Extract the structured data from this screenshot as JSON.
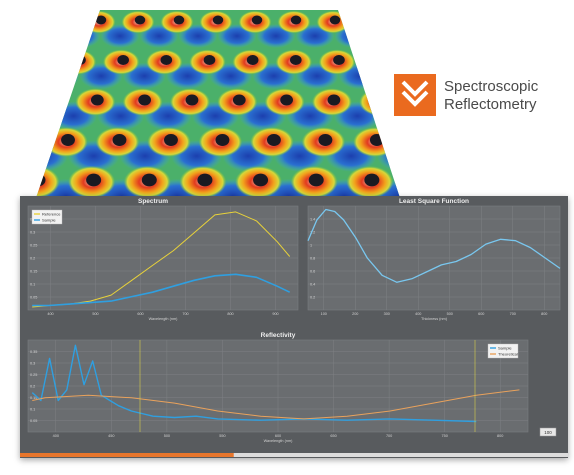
{
  "brand": {
    "line1": "Spectroscopic",
    "line2": "Reflectometry",
    "accent_color": "#ea6a1f",
    "icon": "double-chevron-down-icon"
  },
  "colors": {
    "panel_bg": "#585b5e",
    "plot_bg": "#6a6d70",
    "sample": "#2f9fe0",
    "reference": "#e8d23a",
    "theoretical": "#e9a25c",
    "least_square": "#79c7ef",
    "progress": "#e8762c"
  },
  "spectrum": {
    "title": "Spectrum",
    "xlabel": "Wavelength (nm)",
    "legend": [
      "Reference",
      "Sample"
    ],
    "yticks": [
      "0.35",
      "0.3",
      "0.25",
      "0.2",
      "0.15",
      "0.1",
      "0.05"
    ],
    "xticks": [
      "400",
      "500",
      "600",
      "700",
      "800",
      "900"
    ]
  },
  "lsf": {
    "title": "Least Square Function",
    "xlabel": "Thickness (nm)",
    "yticks": [
      "1.4",
      "1.2",
      "1",
      "0.8",
      "0.6",
      "0.4",
      "0.2"
    ],
    "xticks": [
      "100",
      "200",
      "300",
      "400",
      "500",
      "600",
      "700",
      "800"
    ]
  },
  "reflectivity": {
    "title": "Reflectivity",
    "xlabel": "Wavelength (nm)",
    "legend": [
      "Sample",
      "Theoretical"
    ],
    "yticks": [
      "0.35",
      "0.3",
      "0.25",
      "0.2",
      "0.15",
      "0.1",
      "0.05"
    ],
    "xticks": [
      "400",
      "450",
      "500",
      "550",
      "600",
      "650",
      "700",
      "750",
      "800"
    ],
    "zoom_label": "100"
  },
  "progress": {
    "value": 0.39
  },
  "chart_data": [
    {
      "type": "line",
      "title": "Spectrum",
      "xlabel": "Wavelength (nm)",
      "ylabel": "",
      "xlim": [
        350,
        1000
      ],
      "ylim": [
        0,
        0.35
      ],
      "grid": true,
      "legend_position": "top-left",
      "series": [
        {
          "name": "Reference",
          "x": [
            360,
            400,
            450,
            500,
            550,
            600,
            650,
            700,
            750,
            800,
            850,
            900,
            950,
            980
          ],
          "y": [
            0.01,
            0.015,
            0.02,
            0.03,
            0.05,
            0.1,
            0.15,
            0.2,
            0.26,
            0.32,
            0.33,
            0.3,
            0.23,
            0.18
          ]
        },
        {
          "name": "Sample",
          "x": [
            360,
            400,
            450,
            500,
            550,
            600,
            650,
            700,
            750,
            800,
            850,
            900,
            950,
            980
          ],
          "y": [
            0.015,
            0.015,
            0.02,
            0.025,
            0.03,
            0.045,
            0.06,
            0.08,
            0.1,
            0.115,
            0.12,
            0.11,
            0.08,
            0.06
          ]
        }
      ]
    },
    {
      "type": "line",
      "title": "Least Square Function",
      "xlabel": "Thickness (nm)",
      "ylabel": "",
      "xlim": [
        0,
        850
      ],
      "ylim": [
        0,
        1.5
      ],
      "grid": true,
      "series": [
        {
          "name": "",
          "x": [
            0,
            30,
            60,
            90,
            120,
            160,
            200,
            250,
            300,
            350,
            400,
            450,
            500,
            550,
            600,
            650,
            700,
            750,
            800,
            850
          ],
          "y": [
            1.0,
            1.3,
            1.45,
            1.42,
            1.3,
            1.05,
            0.75,
            0.5,
            0.4,
            0.45,
            0.55,
            0.65,
            0.7,
            0.8,
            0.95,
            1.02,
            1.0,
            0.9,
            0.75,
            0.6
          ]
        }
      ]
    },
    {
      "type": "line",
      "title": "Reflectivity",
      "xlabel": "Wavelength (nm)",
      "ylabel": "",
      "xlim": [
        380,
        960
      ],
      "ylim": [
        0,
        0.35
      ],
      "grid": true,
      "legend_position": "top-right",
      "series": [
        {
          "name": "Sample",
          "x": [
            385,
            395,
            405,
            415,
            425,
            435,
            445,
            455,
            465,
            475,
            485,
            500,
            525,
            550,
            575,
            600,
            650,
            700,
            750,
            800,
            850,
            900
          ],
          "y": [
            0.15,
            0.12,
            0.28,
            0.12,
            0.16,
            0.33,
            0.18,
            0.27,
            0.14,
            0.12,
            0.1,
            0.08,
            0.06,
            0.055,
            0.06,
            0.05,
            0.045,
            0.05,
            0.045,
            0.05,
            0.045,
            0.04
          ]
        },
        {
          "name": "Theoretical",
          "x": [
            385,
            400,
            450,
            500,
            550,
            600,
            650,
            700,
            750,
            800,
            850,
            900,
            950
          ],
          "y": [
            0.12,
            0.13,
            0.14,
            0.13,
            0.11,
            0.08,
            0.06,
            0.05,
            0.06,
            0.08,
            0.11,
            0.14,
            0.16
          ]
        }
      ]
    }
  ]
}
